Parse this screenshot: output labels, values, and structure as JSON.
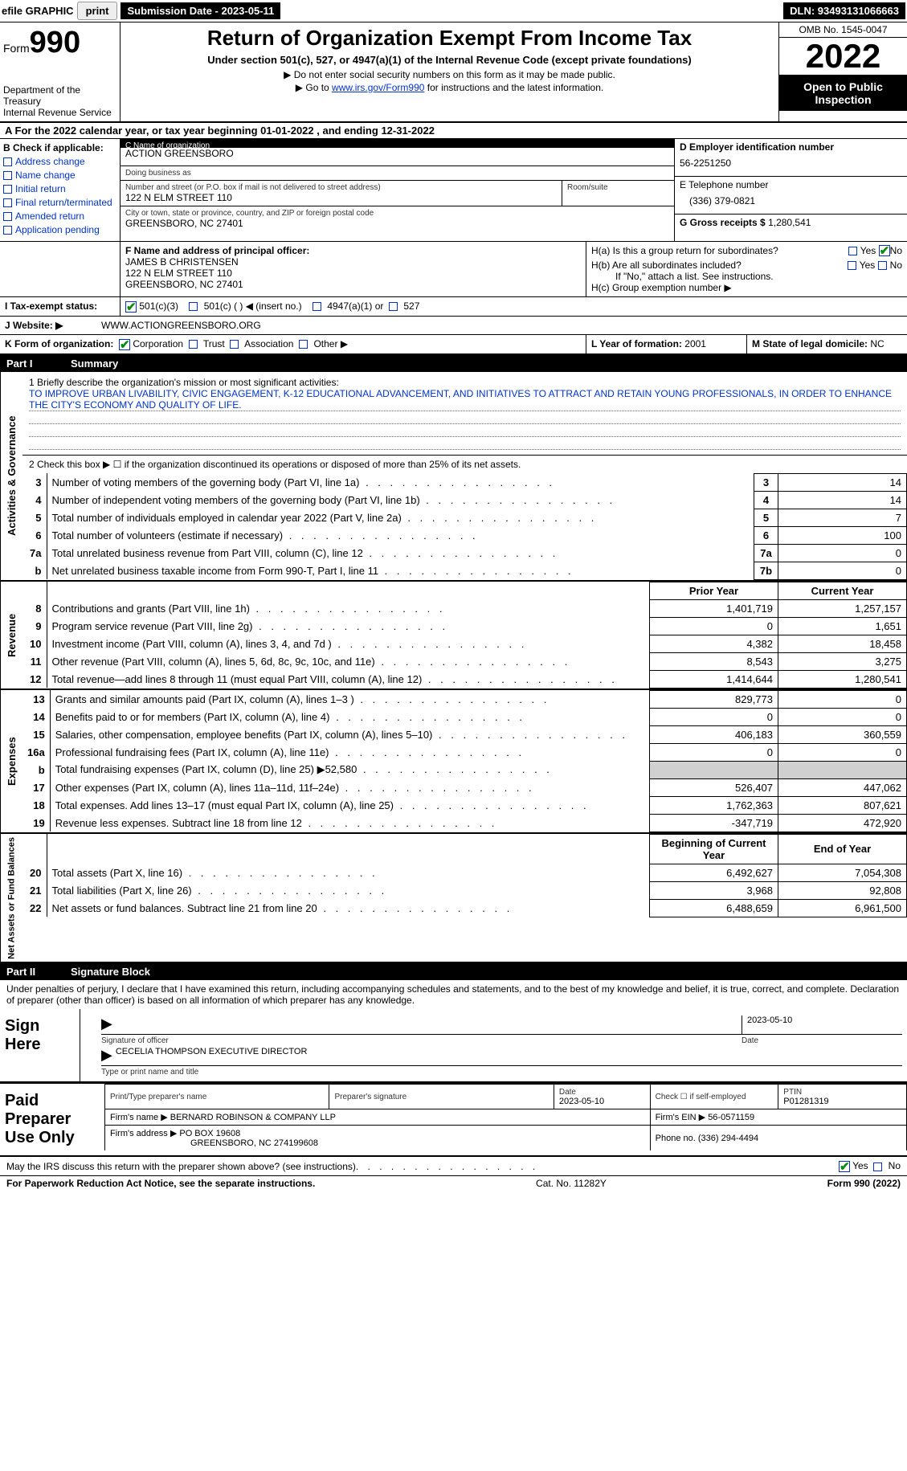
{
  "topbar": {
    "efile_label": "efile GRAPHIC",
    "print_btn": "print",
    "submission_label": "Submission Date - 2023-05-11",
    "dln": "DLN: 93493131066663"
  },
  "header": {
    "form_word": "Form",
    "form_num": "990",
    "dept": "Department of the Treasury",
    "irs": "Internal Revenue Service",
    "title": "Return of Organization Exempt From Income Tax",
    "subtitle": "Under section 501(c), 527, or 4947(a)(1) of the Internal Revenue Code (except private foundations)",
    "note1": "▶ Do not enter social security numbers on this form as it may be made public.",
    "note2_pre": "▶ Go to ",
    "note2_link": "www.irs.gov/Form990",
    "note2_post": " for instructions and the latest information.",
    "omb": "OMB No. 1545-0047",
    "year": "2022",
    "open": "Open to Public Inspection"
  },
  "row_a": {
    "text_pre": "A For the 2022 calendar year, or tax year beginning ",
    "begin": "01-01-2022",
    "mid": " , and ending ",
    "end": "12-31-2022"
  },
  "section_b": {
    "label": "B Check if applicable:",
    "items": [
      "Address change",
      "Name change",
      "Initial return",
      "Final return/terminated",
      "Amended return",
      "Application pending"
    ],
    "c_label": "C Name of organization",
    "c_name": "ACTION GREENSBORO",
    "dba_label": "Doing business as",
    "dba": "",
    "addr_label": "Number and street (or P.O. box if mail is not delivered to street address)",
    "addr": "122 N ELM STREET 110",
    "room_label": "Room/suite",
    "city_label": "City or town, state or province, country, and ZIP or foreign postal code",
    "city": "GREENSBORO, NC  27401",
    "d_label": "D Employer identification number",
    "d_val": "56-2251250",
    "e_label": "E Telephone number",
    "e_val": "(336) 379-0821",
    "g_label": "G Gross receipts $",
    "g_val": "1,280,541"
  },
  "section_f": {
    "f_label": "F Name and address of principal officer:",
    "f_name": "JAMES B CHRISTENSEN",
    "f_addr1": "122 N ELM STREET 110",
    "f_addr2": "GREENSBORO, NC  27401",
    "ha": "H(a)  Is this a group return for subordinates?",
    "hb": "H(b)  Are all subordinates included?",
    "hb_note": "If \"No,\" attach a list. See instructions.",
    "hc": "H(c)  Group exemption number ▶",
    "yes": "Yes",
    "no": "No"
  },
  "row_i": {
    "label": "I   Tax-exempt status:",
    "opt1": "501(c)(3)",
    "opt2": "501(c) (   ) ◀ (insert no.)",
    "opt3": "4947(a)(1) or",
    "opt4": "527"
  },
  "row_j": {
    "label": "J   Website: ▶",
    "val": "WWW.ACTIONGREENSBORO.ORG"
  },
  "row_k": {
    "label": "K Form of organization:",
    "opts": [
      "Corporation",
      "Trust",
      "Association",
      "Other ▶"
    ],
    "l_label": "L Year of formation:",
    "l_val": "2001",
    "m_label": "M State of legal domicile:",
    "m_val": "NC"
  },
  "part1": {
    "num": "Part I",
    "title": "Summary",
    "line1_label": "1   Briefly describe the organization's mission or most significant activities:",
    "mission": "TO IMPROVE URBAN LIVABILITY, CIVIC ENGAGEMENT, K-12 EDUCATIONAL ADVANCEMENT, AND INITIATIVES TO ATTRACT AND RETAIN YOUNG PROFESSIONALS, IN ORDER TO ENHANCE THE CITY'S ECONOMY AND QUALITY OF LIFE.",
    "line2": "2   Check this box ▶ ☐ if the organization discontinued its operations or disposed of more than 25% of its net assets.",
    "vlabel_ag": "Activities & Governance",
    "vlabel_rev": "Revenue",
    "vlabel_exp": "Expenses",
    "vlabel_net": "Net Assets or Fund Balances",
    "prior_hdr": "Prior Year",
    "current_hdr": "Current Year",
    "boy_hdr": "Beginning of Current Year",
    "eoy_hdr": "End of Year",
    "rows_ag": [
      {
        "n": "3",
        "d": "Number of voting members of the governing body (Part VI, line 1a)",
        "box": "3",
        "v": "14"
      },
      {
        "n": "4",
        "d": "Number of independent voting members of the governing body (Part VI, line 1b)",
        "box": "4",
        "v": "14"
      },
      {
        "n": "5",
        "d": "Total number of individuals employed in calendar year 2022 (Part V, line 2a)",
        "box": "5",
        "v": "7"
      },
      {
        "n": "6",
        "d": "Total number of volunteers (estimate if necessary)",
        "box": "6",
        "v": "100"
      },
      {
        "n": "7a",
        "d": "Total unrelated business revenue from Part VIII, column (C), line 12",
        "box": "7a",
        "v": "0"
      },
      {
        "n": "b",
        "d": "Net unrelated business taxable income from Form 990-T, Part I, line 11",
        "box": "7b",
        "v": "0"
      }
    ],
    "rows_rev": [
      {
        "n": "8",
        "d": "Contributions and grants (Part VIII, line 1h)",
        "p": "1,401,719",
        "c": "1,257,157"
      },
      {
        "n": "9",
        "d": "Program service revenue (Part VIII, line 2g)",
        "p": "0",
        "c": "1,651"
      },
      {
        "n": "10",
        "d": "Investment income (Part VIII, column (A), lines 3, 4, and 7d )",
        "p": "4,382",
        "c": "18,458"
      },
      {
        "n": "11",
        "d": "Other revenue (Part VIII, column (A), lines 5, 6d, 8c, 9c, 10c, and 11e)",
        "p": "8,543",
        "c": "3,275"
      },
      {
        "n": "12",
        "d": "Total revenue—add lines 8 through 11 (must equal Part VIII, column (A), line 12)",
        "p": "1,414,644",
        "c": "1,280,541"
      }
    ],
    "rows_exp": [
      {
        "n": "13",
        "d": "Grants and similar amounts paid (Part IX, column (A), lines 1–3 )",
        "p": "829,773",
        "c": "0"
      },
      {
        "n": "14",
        "d": "Benefits paid to or for members (Part IX, column (A), line 4)",
        "p": "0",
        "c": "0"
      },
      {
        "n": "15",
        "d": "Salaries, other compensation, employee benefits (Part IX, column (A), lines 5–10)",
        "p": "406,183",
        "c": "360,559"
      },
      {
        "n": "16a",
        "d": "Professional fundraising fees (Part IX, column (A), line 11e)",
        "p": "0",
        "c": "0"
      },
      {
        "n": "b",
        "d": "Total fundraising expenses (Part IX, column (D), line 25) ▶52,580",
        "p": "",
        "c": "",
        "shade": true
      },
      {
        "n": "17",
        "d": "Other expenses (Part IX, column (A), lines 11a–11d, 11f–24e)",
        "p": "526,407",
        "c": "447,062"
      },
      {
        "n": "18",
        "d": "Total expenses. Add lines 13–17 (must equal Part IX, column (A), line 25)",
        "p": "1,762,363",
        "c": "807,621"
      },
      {
        "n": "19",
        "d": "Revenue less expenses. Subtract line 18 from line 12",
        "p": "-347,719",
        "c": "472,920"
      }
    ],
    "rows_net": [
      {
        "n": "20",
        "d": "Total assets (Part X, line 16)",
        "p": "6,492,627",
        "c": "7,054,308"
      },
      {
        "n": "21",
        "d": "Total liabilities (Part X, line 26)",
        "p": "3,968",
        "c": "92,808"
      },
      {
        "n": "22",
        "d": "Net assets or fund balances. Subtract line 21 from line 20",
        "p": "6,488,659",
        "c": "6,961,500"
      }
    ]
  },
  "part2": {
    "num": "Part II",
    "title": "Signature Block",
    "decl": "Under penalties of perjury, I declare that I have examined this return, including accompanying schedules and statements, and to the best of my knowledge and belief, it is true, correct, and complete. Declaration of preparer (other than officer) is based on all information of which preparer has any knowledge.",
    "sign_here": "Sign Here",
    "sig_officer": "Signature of officer",
    "sig_date": "2023-05-10",
    "date_lbl": "Date",
    "officer_name": "CECELIA THOMPSON  EXECUTIVE DIRECTOR",
    "type_name": "Type or print name and title",
    "paid": "Paid Preparer Use Only",
    "prep_name_lbl": "Print/Type preparer's name",
    "prep_sig_lbl": "Preparer's signature",
    "prep_date_lbl": "Date",
    "prep_date": "2023-05-10",
    "check_lbl": "Check ☐ if self-employed",
    "ptin_lbl": "PTIN",
    "ptin": "P01281319",
    "firm_name_lbl": "Firm's name    ▶",
    "firm_name": "BERNARD ROBINSON & COMPANY LLP",
    "firm_ein_lbl": "Firm's EIN ▶",
    "firm_ein": "56-0571159",
    "firm_addr_lbl": "Firm's address ▶",
    "firm_addr1": "PO BOX 19608",
    "firm_addr2": "GREENSBORO, NC  274199608",
    "phone_lbl": "Phone no.",
    "phone": "(336) 294-4494",
    "discuss": "May the IRS discuss this return with the preparer shown above? (see instructions)",
    "yes": "Yes",
    "no": "No"
  },
  "footer": {
    "pra": "For Paperwork Reduction Act Notice, see the separate instructions.",
    "cat": "Cat. No. 11282Y",
    "form": "Form 990 (2022)"
  }
}
